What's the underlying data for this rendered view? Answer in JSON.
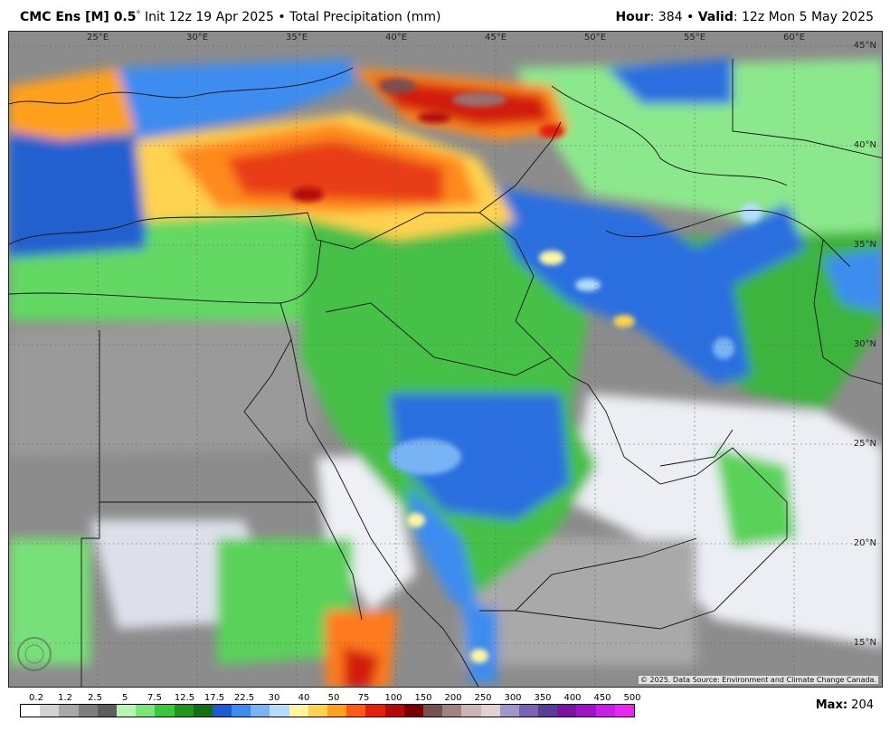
{
  "header": {
    "model": "CMC Ens [M] 0.5",
    "degree": "°",
    "init": "Init 12z 19 Apr 2025",
    "bullet": "•",
    "product": "Total Precipitation (mm)",
    "hour_label": "Hour",
    "hour_value": ": 384",
    "valid_label": "Valid",
    "valid_value": ": 12z Mon 5 May 2025"
  },
  "map": {
    "lat_labels": [
      "45°N",
      "40°N",
      "35°N",
      "30°N",
      "25°N",
      "20°N",
      "15°N"
    ],
    "lon_labels": [
      "25°E",
      "30°E",
      "35°E",
      "40°E",
      "45°E",
      "50°E",
      "55°E",
      "60°E"
    ],
    "credit": "© 2025. Data Source: Environment and Climate Change Canada.",
    "logo_text": "WEATHERBELL"
  },
  "legend": {
    "ticks": [
      "0.2",
      "1.2",
      "2.5",
      "5",
      "7.5",
      "12.5",
      "17.5",
      "22.5",
      "30",
      "40",
      "50",
      "75",
      "100",
      "150",
      "200",
      "250",
      "300",
      "350",
      "400",
      "450",
      "500"
    ],
    "colors": [
      "#ffffff",
      "#d2d2d2",
      "#a8a8a8",
      "#7e7e7e",
      "#5e5e5e",
      "#b4f5b4",
      "#78e678",
      "#3cc83c",
      "#1e961e",
      "#146e14",
      "#1e5ad2",
      "#3c8cf0",
      "#78b4f5",
      "#b4dcff",
      "#fff5a0",
      "#ffd250",
      "#ffa01e",
      "#ff5a14",
      "#e61e0a",
      "#b40a0a",
      "#780000",
      "#785050",
      "#a08282",
      "#c8b4b4",
      "#e1d2d2",
      "#a096c8",
      "#7864b4",
      "#5a3c96",
      "#7814a0",
      "#a014c8",
      "#c81ee6",
      "#e628f0"
    ],
    "max_label": "Max:",
    "max_value": "204"
  }
}
